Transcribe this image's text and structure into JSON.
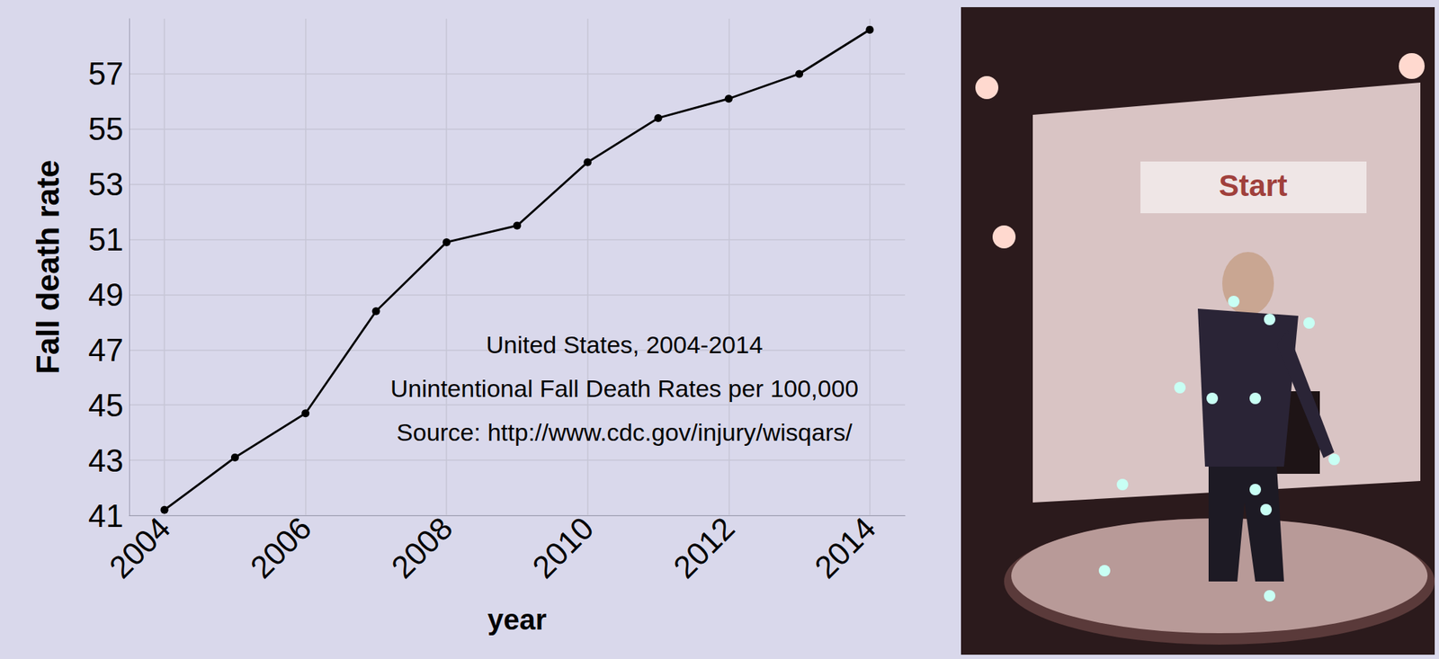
{
  "chart_data": {
    "type": "line",
    "x_label": "year",
    "y_label": "Fall death rate",
    "annotations": [
      "United States, 2004-2014",
      "Unintentional Fall Death Rates per 100,000",
      "Source: http://www.cdc.gov/injury/wisqars/"
    ],
    "x": [
      2004,
      2005,
      2006,
      2007,
      2008,
      2009,
      2010,
      2011,
      2012,
      2013,
      2014
    ],
    "values": [
      41.2,
      43.1,
      44.7,
      48.4,
      50.9,
      51.5,
      53.8,
      55.4,
      56.1,
      57.0,
      58.6
    ],
    "color": "#000000",
    "marker": "circle",
    "xlim": [
      2003.5,
      2014.5
    ],
    "xticks": [
      2004,
      2006,
      2008,
      2010,
      2012,
      2014
    ],
    "ylim": [
      41,
      59
    ],
    "yticks": [
      41,
      43,
      45,
      47,
      49,
      51,
      53,
      55,
      57
    ],
    "grid": true
  },
  "photo": {
    "screen_text": "Start"
  }
}
